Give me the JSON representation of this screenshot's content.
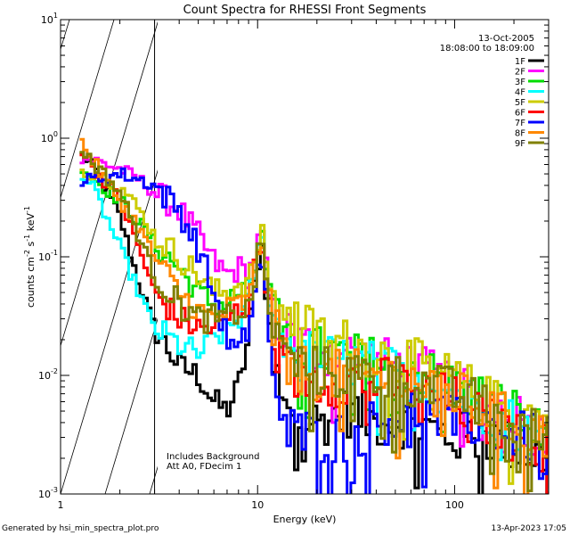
{
  "chart_data": {
    "type": "line",
    "step": true,
    "title": "Count Spectra for RHESSI Front Segments",
    "xlabel": "Energy (keV)",
    "ylabel_parts": {
      "base": "counts cm",
      "sup1": "-2",
      "mid": " s",
      "sup2": "-1",
      "tail": " keV",
      "sup3": "-1"
    },
    "xscale": "log",
    "yscale": "log",
    "xlim": [
      1,
      300
    ],
    "ylim": [
      0.001,
      10
    ],
    "x_ticks": [
      {
        "value": 1,
        "label": "1"
      },
      {
        "value": 10,
        "label": "10"
      },
      {
        "value": 100,
        "label": "100"
      }
    ],
    "y_ticks": [
      {
        "value": 0.001,
        "base": "10",
        "exp": "-3"
      },
      {
        "value": 0.01,
        "base": "10",
        "exp": "-2"
      },
      {
        "value": 0.1,
        "base": "10",
        "exp": "-1"
      },
      {
        "value": 1,
        "base": "10",
        "exp": "0"
      },
      {
        "value": 10,
        "base": "10",
        "exp": "1"
      }
    ],
    "date": "13-Oct-2005",
    "time_range": "18:08:00 to 18:09:00",
    "hatched_region_max_kev": 3,
    "annotations": [
      "Includes Background",
      "Att A0, FDecim 1"
    ],
    "footer_left": "Generated by hsi_min_spectra_plot.pro",
    "footer_right": "13-Apr-2023 17:05",
    "series": [
      {
        "name": "1F",
        "color": "#000000"
      },
      {
        "name": "2F",
        "color": "#ff00ff"
      },
      {
        "name": "3F",
        "color": "#00dd00"
      },
      {
        "name": "4F",
        "color": "#00ffff"
      },
      {
        "name": "5F",
        "color": "#cccc00"
      },
      {
        "name": "6F",
        "color": "#ff0000"
      },
      {
        "name": "7F",
        "color": "#0000ff"
      },
      {
        "name": "8F",
        "color": "#ff8800"
      },
      {
        "name": "9F",
        "color": "#808000"
      }
    ],
    "anchors": {
      "1F": [
        [
          1.2,
          0.8
        ],
        [
          1.5,
          0.55
        ],
        [
          2,
          0.22
        ],
        [
          2.5,
          0.06
        ],
        [
          3,
          0.025
        ],
        [
          4,
          0.012
        ],
        [
          5,
          0.01
        ],
        [
          6,
          0.006
        ],
        [
          7,
          0.005
        ],
        [
          8,
          0.008
        ],
        [
          9,
          0.02
        ],
        [
          10,
          0.09
        ],
        [
          10.5,
          0.13
        ],
        [
          11,
          0.06
        ],
        [
          12,
          0.012
        ],
        [
          15,
          0.005
        ],
        [
          20,
          0.004
        ],
        [
          30,
          0.005
        ],
        [
          40,
          0.004
        ],
        [
          60,
          0.004
        ],
        [
          100,
          0.003
        ],
        [
          150,
          0.003
        ],
        [
          200,
          0.0025
        ],
        [
          280,
          0.002
        ]
      ],
      "2F": [
        [
          1.2,
          0.7
        ],
        [
          1.5,
          0.65
        ],
        [
          2,
          0.55
        ],
        [
          2.5,
          0.45
        ],
        [
          3,
          0.35
        ],
        [
          4,
          0.25
        ],
        [
          5,
          0.15
        ],
        [
          6,
          0.09
        ],
        [
          7,
          0.07
        ],
        [
          8,
          0.08
        ],
        [
          9,
          0.07
        ],
        [
          10,
          0.12
        ],
        [
          10.5,
          0.16
        ],
        [
          11,
          0.08
        ],
        [
          12,
          0.03
        ],
        [
          15,
          0.02
        ],
        [
          20,
          0.016
        ],
        [
          30,
          0.015
        ],
        [
          40,
          0.013
        ],
        [
          60,
          0.012
        ],
        [
          100,
          0.008
        ],
        [
          150,
          0.006
        ],
        [
          200,
          0.005
        ],
        [
          280,
          0.003
        ]
      ],
      "3F": [
        [
          1.2,
          0.65
        ],
        [
          1.5,
          0.45
        ],
        [
          2,
          0.3
        ],
        [
          2.5,
          0.2
        ],
        [
          3,
          0.13
        ],
        [
          4,
          0.08
        ],
        [
          5,
          0.05
        ],
        [
          6,
          0.04
        ],
        [
          7,
          0.04
        ],
        [
          8,
          0.05
        ],
        [
          9,
          0.05
        ],
        [
          10,
          0.1
        ],
        [
          10.5,
          0.15
        ],
        [
          11,
          0.08
        ],
        [
          12,
          0.03
        ],
        [
          15,
          0.02
        ],
        [
          20,
          0.016
        ],
        [
          30,
          0.014
        ],
        [
          40,
          0.013
        ],
        [
          60,
          0.012
        ],
        [
          100,
          0.008
        ],
        [
          150,
          0.006
        ],
        [
          200,
          0.005
        ],
        [
          280,
          0.003
        ]
      ],
      "4F": [
        [
          1.2,
          0.6
        ],
        [
          1.5,
          0.35
        ],
        [
          2,
          0.12
        ],
        [
          2.5,
          0.05
        ],
        [
          3,
          0.025
        ],
        [
          4,
          0.018
        ],
        [
          5,
          0.015
        ],
        [
          6,
          0.02
        ],
        [
          7,
          0.025
        ],
        [
          8,
          0.03
        ],
        [
          9,
          0.04
        ],
        [
          10,
          0.1
        ],
        [
          10.5,
          0.14
        ],
        [
          11,
          0.07
        ],
        [
          12,
          0.03
        ],
        [
          15,
          0.018
        ],
        [
          20,
          0.014
        ],
        [
          30,
          0.013
        ],
        [
          40,
          0.012
        ],
        [
          60,
          0.01
        ],
        [
          100,
          0.007
        ],
        [
          150,
          0.005
        ],
        [
          200,
          0.004
        ],
        [
          280,
          0.003
        ]
      ],
      "5F": [
        [
          1.2,
          0.55
        ],
        [
          1.5,
          0.5
        ],
        [
          2,
          0.4
        ],
        [
          2.5,
          0.25
        ],
        [
          3,
          0.15
        ],
        [
          4,
          0.1
        ],
        [
          5,
          0.07
        ],
        [
          6,
          0.05
        ],
        [
          7,
          0.05
        ],
        [
          8,
          0.06
        ],
        [
          9,
          0.06
        ],
        [
          10,
          0.1
        ],
        [
          10.5,
          0.15
        ],
        [
          11,
          0.1
        ],
        [
          12,
          0.04
        ],
        [
          15,
          0.03
        ],
        [
          20,
          0.022
        ],
        [
          30,
          0.018
        ],
        [
          40,
          0.015
        ],
        [
          60,
          0.013
        ],
        [
          100,
          0.009
        ],
        [
          150,
          0.006
        ],
        [
          200,
          0.005
        ],
        [
          280,
          0.004
        ]
      ],
      "6F": [
        [
          1.2,
          0.9
        ],
        [
          1.5,
          0.55
        ],
        [
          2,
          0.3
        ],
        [
          2.5,
          0.12
        ],
        [
          3,
          0.05
        ],
        [
          4,
          0.03
        ],
        [
          5,
          0.025
        ],
        [
          6,
          0.025
        ],
        [
          7,
          0.03
        ],
        [
          8,
          0.035
        ],
        [
          9,
          0.04
        ],
        [
          10,
          0.1
        ],
        [
          10.5,
          0.14
        ],
        [
          11,
          0.07
        ],
        [
          12,
          0.02
        ],
        [
          15,
          0.01
        ],
        [
          20,
          0.009
        ],
        [
          30,
          0.009
        ],
        [
          40,
          0.009
        ],
        [
          60,
          0.008
        ],
        [
          100,
          0.006
        ],
        [
          150,
          0.004
        ],
        [
          200,
          0.003
        ],
        [
          280,
          0.0025
        ]
      ],
      "7F": [
        [
          1.2,
          0.42
        ],
        [
          1.5,
          0.45
        ],
        [
          2,
          0.5
        ],
        [
          2.5,
          0.45
        ],
        [
          3,
          0.4
        ],
        [
          4,
          0.25
        ],
        [
          5,
          0.12
        ],
        [
          6,
          0.05
        ],
        [
          7,
          0.02
        ],
        [
          8,
          0.015
        ],
        [
          9,
          0.025
        ],
        [
          10,
          0.07
        ],
        [
          10.5,
          0.1
        ],
        [
          11,
          0.05
        ],
        [
          12,
          0.008
        ],
        [
          15,
          0.0035
        ],
        [
          20,
          0.003
        ],
        [
          30,
          0.003
        ],
        [
          40,
          0.004
        ],
        [
          60,
          0.005
        ],
        [
          100,
          0.004
        ],
        [
          150,
          0.004
        ],
        [
          200,
          0.003
        ],
        [
          280,
          0.003
        ]
      ],
      "8F": [
        [
          1.2,
          1.1
        ],
        [
          1.5,
          0.6
        ],
        [
          2,
          0.3
        ],
        [
          2.5,
          0.18
        ],
        [
          3,
          0.1
        ],
        [
          4,
          0.05
        ],
        [
          5,
          0.035
        ],
        [
          6,
          0.03
        ],
        [
          7,
          0.035
        ],
        [
          8,
          0.04
        ],
        [
          9,
          0.04
        ],
        [
          10,
          0.1
        ],
        [
          10.5,
          0.15
        ],
        [
          11,
          0.08
        ],
        [
          12,
          0.025
        ],
        [
          15,
          0.012
        ],
        [
          20,
          0.01
        ],
        [
          30,
          0.01
        ],
        [
          40,
          0.01
        ],
        [
          60,
          0.009
        ],
        [
          100,
          0.007
        ],
        [
          150,
          0.005
        ],
        [
          200,
          0.004
        ],
        [
          280,
          0.003
        ]
      ],
      "9F": [
        [
          1.2,
          0.9
        ],
        [
          1.5,
          0.6
        ],
        [
          2,
          0.35
        ],
        [
          2.5,
          0.15
        ],
        [
          3,
          0.07
        ],
        [
          4,
          0.04
        ],
        [
          5,
          0.03
        ],
        [
          6,
          0.03
        ],
        [
          7,
          0.03
        ],
        [
          8,
          0.035
        ],
        [
          9,
          0.035
        ],
        [
          10,
          0.09
        ],
        [
          10.5,
          0.13
        ],
        [
          11,
          0.07
        ],
        [
          12,
          0.022
        ],
        [
          15,
          0.013
        ],
        [
          20,
          0.011
        ],
        [
          30,
          0.01
        ],
        [
          40,
          0.01
        ],
        [
          60,
          0.009
        ],
        [
          100,
          0.007
        ],
        [
          150,
          0.005
        ],
        [
          200,
          0.004
        ],
        [
          280,
          0.003
        ]
      ]
    }
  }
}
